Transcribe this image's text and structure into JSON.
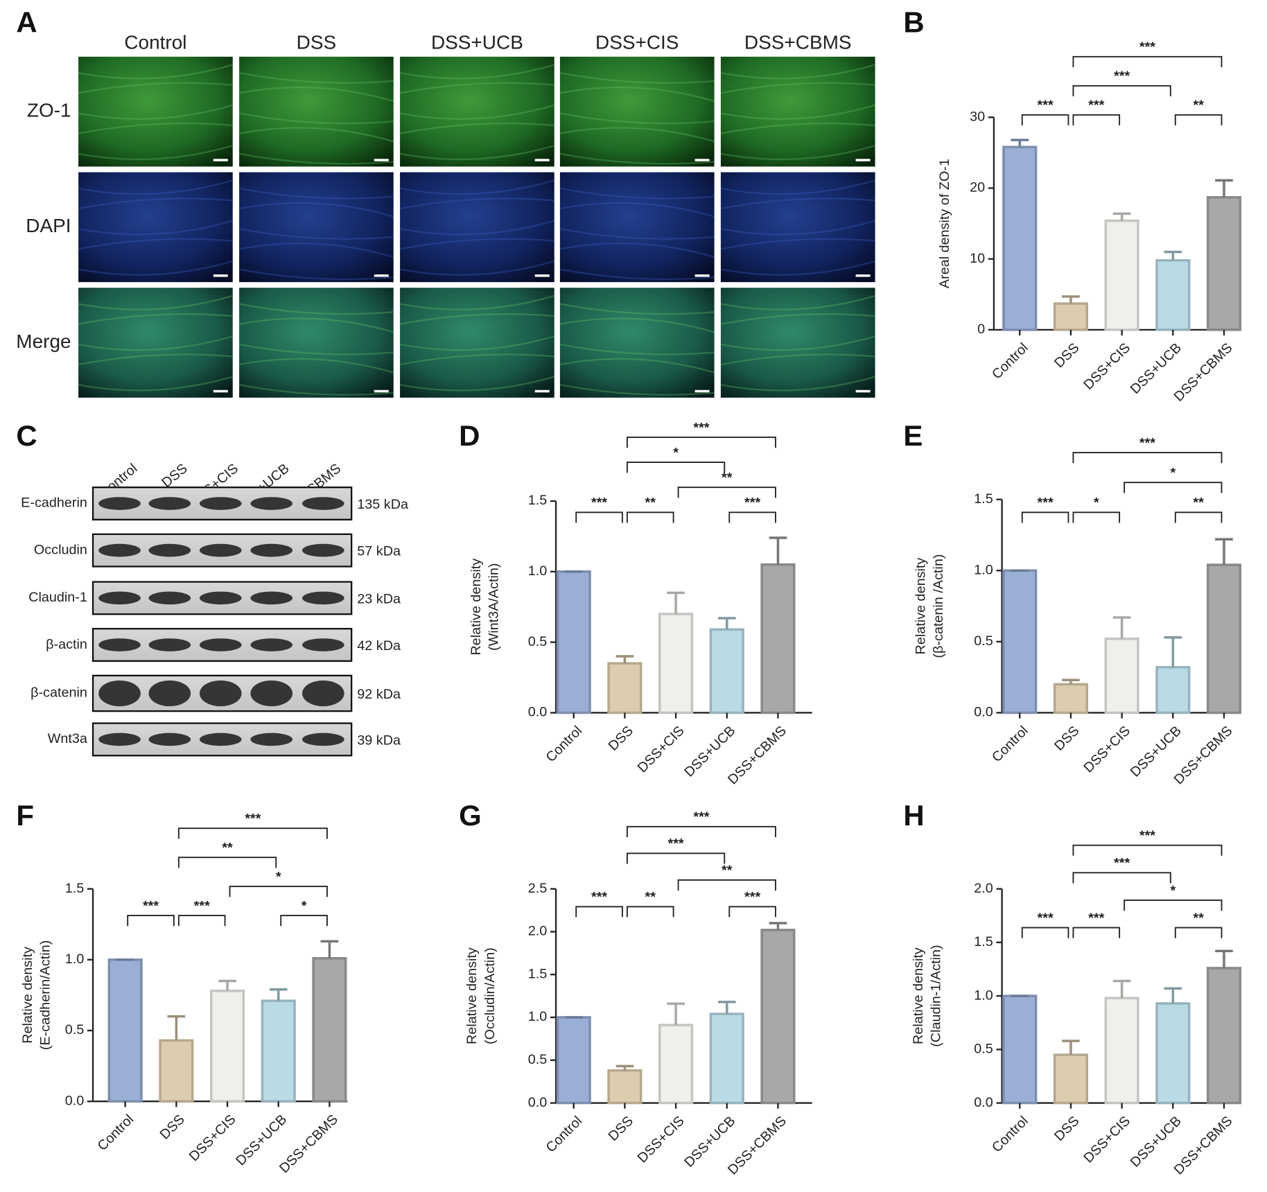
{
  "panel_labels": [
    "A",
    "B",
    "C",
    "D",
    "E",
    "F",
    "G",
    "H"
  ],
  "microscopy": {
    "columns": [
      "Control",
      "DSS",
      "DSS+UCB",
      "DSS+CIS",
      "DSS+CBMS"
    ],
    "rows": [
      "ZO-1",
      "DAPI",
      "Merge"
    ]
  },
  "blot": {
    "lanes": [
      "Control",
      "DSS",
      "DSS+CIS",
      "DSS+UCB",
      "DSS+CBMS"
    ],
    "bands": [
      {
        "protein": "E-cadherin",
        "size": "135 kDa"
      },
      {
        "protein": "Occludin",
        "size": "57 kDa"
      },
      {
        "protein": "Claudin-1",
        "size": "23 kDa"
      },
      {
        "protein": "β-actin",
        "size": "42 kDa"
      },
      {
        "protein": "β-catenin",
        "size": "92 kDa"
      },
      {
        "protein": "Wnt3a",
        "size": "39 kDa"
      }
    ]
  },
  "chart_data": [
    {
      "type": "bar",
      "ylabel": [
        "Areal density of ZO-1"
      ],
      "categories": [
        "Control",
        "DSS",
        "DSS+CIS",
        "DSS+UCB",
        "DSS+CBMS"
      ],
      "values": [
        25.8,
        3.7,
        15.4,
        9.8,
        18.7
      ],
      "errors": [
        1.0,
        1.0,
        1.0,
        1.2,
        2.4
      ],
      "colors": [
        "#9aaed6",
        "#ddcdaf",
        "#efefeb",
        "#b9dbe5",
        "#a8a8a8"
      ],
      "ylim": [
        0,
        30
      ],
      "yticks": [
        0,
        10,
        20,
        30
      ],
      "significance": [
        {
          "pair": [
            0,
            1
          ],
          "level": 0,
          "label": "***"
        },
        {
          "pair": [
            1,
            2
          ],
          "level": 0,
          "label": "***"
        },
        {
          "pair": [
            3,
            4
          ],
          "level": 0,
          "label": "**"
        },
        {
          "pair": [
            1,
            3
          ],
          "level": 1,
          "label": "***"
        },
        {
          "pair": [
            1,
            4
          ],
          "level": 2,
          "label": "***"
        }
      ]
    },
    {
      "type": "bar",
      "ylabel": [
        "Relative density",
        "(Wint3A/Actin)"
      ],
      "categories": [
        "Control",
        "DSS",
        "DSS+CIS",
        "DSS+UCB",
        "DSS+CBMS"
      ],
      "values": [
        1.0,
        0.35,
        0.7,
        0.59,
        1.05
      ],
      "errors": [
        0,
        0.05,
        0.15,
        0.08,
        0.19
      ],
      "colors": [
        "#9aaed6",
        "#ddcdaf",
        "#efefeb",
        "#b9dbe5",
        "#a8a8a8"
      ],
      "ylim": [
        0,
        1.5
      ],
      "yticks": [
        {
          "value": 0,
          "label": "0.0"
        },
        0.5,
        {
          "value": 1,
          "label": "1.0"
        },
        1.5
      ],
      "significance": [
        {
          "pair": [
            0,
            1
          ],
          "level": 0,
          "label": "***"
        },
        {
          "pair": [
            1,
            2
          ],
          "level": 0,
          "label": "**"
        },
        {
          "pair": [
            3,
            4
          ],
          "level": 0,
          "label": "***"
        },
        {
          "pair": [
            2,
            4
          ],
          "level": 1,
          "label": "**"
        },
        {
          "pair": [
            1,
            3
          ],
          "level": 2,
          "label": "*"
        },
        {
          "pair": [
            1,
            4
          ],
          "level": 3,
          "label": "***"
        }
      ]
    },
    {
      "type": "bar",
      "ylabel": [
        "Relative density",
        "(β-catenin /Actin)"
      ],
      "categories": [
        "Control",
        "DSS",
        "DSS+CIS",
        "DSS+UCB",
        "DSS+CBMS"
      ],
      "values": [
        1.0,
        0.2,
        0.52,
        0.32,
        1.04
      ],
      "errors": [
        0,
        0.03,
        0.15,
        0.21,
        0.18
      ],
      "colors": [
        "#9aaed6",
        "#ddcdaf",
        "#efefeb",
        "#b9dbe5",
        "#a8a8a8"
      ],
      "ylim": [
        0,
        1.5
      ],
      "yticks": [
        {
          "value": 0,
          "label": "0.0"
        },
        0.5,
        {
          "value": 1,
          "label": "1.0"
        },
        1.5
      ],
      "significance": [
        {
          "pair": [
            0,
            1
          ],
          "level": 0,
          "label": "***"
        },
        {
          "pair": [
            1,
            2
          ],
          "level": 0,
          "label": "*"
        },
        {
          "pair": [
            3,
            4
          ],
          "level": 0,
          "label": "**"
        },
        {
          "pair": [
            2,
            4
          ],
          "level": 1,
          "label": "*"
        },
        {
          "pair": [
            1,
            4
          ],
          "level": 2,
          "label": "***"
        }
      ]
    },
    {
      "type": "bar",
      "ylabel": [
        "Relative density",
        "(E-cadherin/Actin)"
      ],
      "categories": [
        "Control",
        "DSS",
        "DSS+CIS",
        "DSS+UCB",
        "DSS+CBMS"
      ],
      "values": [
        1.0,
        0.43,
        0.78,
        0.71,
        1.01
      ],
      "errors": [
        0,
        0.17,
        0.07,
        0.08,
        0.12
      ],
      "colors": [
        "#9aaed6",
        "#ddcdaf",
        "#efefeb",
        "#b9dbe5",
        "#a8a8a8"
      ],
      "ylim": [
        0,
        1.5
      ],
      "yticks": [
        {
          "value": 0,
          "label": "0.0"
        },
        0.5,
        {
          "value": 1,
          "label": "1.0"
        },
        1.5
      ],
      "significance": [
        {
          "pair": [
            0,
            1
          ],
          "level": 0,
          "label": "***"
        },
        {
          "pair": [
            1,
            2
          ],
          "level": 0,
          "label": "***"
        },
        {
          "pair": [
            3,
            4
          ],
          "level": 0,
          "label": "*"
        },
        {
          "pair": [
            2,
            4
          ],
          "level": 1,
          "label": "*"
        },
        {
          "pair": [
            1,
            3
          ],
          "level": 2,
          "label": "**"
        },
        {
          "pair": [
            1,
            4
          ],
          "level": 3,
          "label": "***"
        }
      ]
    },
    {
      "type": "bar",
      "ylabel": [
        "Relative density",
        "(Occludin/Actin)"
      ],
      "categories": [
        "Control",
        "DSS",
        "DSS+CIS",
        "DSS+UCB",
        "DSS+CBMS"
      ],
      "values": [
        1.0,
        0.38,
        0.91,
        1.04,
        2.02
      ],
      "errors": [
        0,
        0.05,
        0.25,
        0.14,
        0.08
      ],
      "colors": [
        "#9aaed6",
        "#ddcdaf",
        "#efefeb",
        "#b9dbe5",
        "#a8a8a8"
      ],
      "ylim": [
        0,
        2.5
      ],
      "yticks": [
        {
          "value": 0,
          "label": "0.0"
        },
        0.5,
        {
          "value": 1,
          "label": "1.0"
        },
        1.5,
        {
          "value": 2,
          "label": "2.0"
        },
        2.5
      ],
      "significance": [
        {
          "pair": [
            0,
            1
          ],
          "level": 0,
          "label": "***"
        },
        {
          "pair": [
            1,
            2
          ],
          "level": 0,
          "label": "**"
        },
        {
          "pair": [
            3,
            4
          ],
          "level": 0,
          "label": "***"
        },
        {
          "pair": [
            2,
            4
          ],
          "level": 1,
          "label": "**"
        },
        {
          "pair": [
            1,
            3
          ],
          "level": 2,
          "label": "***"
        },
        {
          "pair": [
            1,
            4
          ],
          "level": 3,
          "label": "***"
        }
      ]
    },
    {
      "type": "bar",
      "ylabel": [
        "Relative density",
        "(Claudin-1/Actin)"
      ],
      "categories": [
        "Control",
        "DSS",
        "DSS+CIS",
        "DSS+UCB",
        "DSS+CBMS"
      ],
      "values": [
        1.0,
        0.45,
        0.98,
        0.93,
        1.26
      ],
      "errors": [
        0,
        0.13,
        0.16,
        0.14,
        0.16
      ],
      "colors": [
        "#9aaed6",
        "#ddcdaf",
        "#efefeb",
        "#b9dbe5",
        "#a8a8a8"
      ],
      "ylim": [
        0,
        2.0
      ],
      "yticks": [
        {
          "value": 0,
          "label": "0.0"
        },
        0.5,
        {
          "value": 1,
          "label": "1.0"
        },
        1.5,
        {
          "value": 2,
          "label": "2.0"
        }
      ],
      "significance": [
        {
          "pair": [
            0,
            1
          ],
          "level": 0,
          "label": "***"
        },
        {
          "pair": [
            1,
            2
          ],
          "level": 0,
          "label": "***"
        },
        {
          "pair": [
            3,
            4
          ],
          "level": 0,
          "label": "**"
        },
        {
          "pair": [
            2,
            4
          ],
          "level": 1,
          "label": "*"
        },
        {
          "pair": [
            1,
            3
          ],
          "level": 2,
          "label": "***"
        },
        {
          "pair": [
            1,
            4
          ],
          "level": 3,
          "label": "***"
        }
      ]
    }
  ]
}
